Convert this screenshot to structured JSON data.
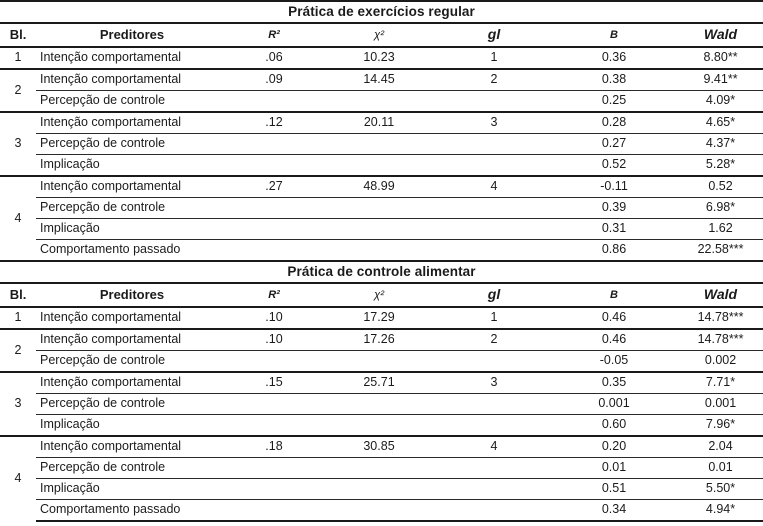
{
  "table": {
    "columns": [
      {
        "key": "bl",
        "label": "Bl."
      },
      {
        "key": "preditores",
        "label": "Preditores"
      },
      {
        "key": "r2",
        "label": "R²"
      },
      {
        "key": "chi2",
        "label": "χ²"
      },
      {
        "key": "gl",
        "label": "gl"
      },
      {
        "key": "b",
        "label": "B"
      },
      {
        "key": "wald",
        "label": "Wald"
      }
    ],
    "sections": [
      {
        "title": "Prática de exercícios regular",
        "blocks": [
          {
            "bl": "1",
            "rows": [
              [
                "Intenção comportamental",
                ".06",
                "10.23",
                "1",
                "0.36",
                "8.80**"
              ]
            ]
          },
          {
            "bl": "2",
            "rows": [
              [
                "Intenção comportamental",
                ".09",
                "14.45",
                "2",
                "0.38",
                "9.41**"
              ],
              [
                "Percepção de controle",
                "",
                "",
                "",
                "0.25",
                "4.09*"
              ]
            ]
          },
          {
            "bl": "3",
            "rows": [
              [
                "Intenção comportamental",
                ".12",
                "20.11",
                "3",
                "0.28",
                "4.65*"
              ],
              [
                "Percepção de controle",
                "",
                "",
                "",
                "0.27",
                "4.37*"
              ],
              [
                "Implicação",
                "",
                "",
                "",
                "0.52",
                "5.28*"
              ]
            ]
          },
          {
            "bl": "4",
            "rows": [
              [
                "Intenção comportamental",
                ".27",
                "48.99",
                "4",
                "-0.11",
                "0.52"
              ],
              [
                "Percepção de controle",
                "",
                "",
                "",
                "0.39",
                "6.98*"
              ],
              [
                "Implicação",
                "",
                "",
                "",
                "0.31",
                "1.62"
              ],
              [
                "Comportamento passado",
                "",
                "",
                "",
                "0.86",
                "22.58***"
              ]
            ]
          }
        ]
      },
      {
        "title": "Prática de controle alimentar",
        "blocks": [
          {
            "bl": "1",
            "rows": [
              [
                "Intenção comportamental",
                ".10",
                "17.29",
                "1",
                "0.46",
                "14.78***"
              ]
            ]
          },
          {
            "bl": "2",
            "rows": [
              [
                "Intenção comportamental",
                ".10",
                "17.26",
                "2",
                "0.46",
                "14.78***"
              ],
              [
                "Percepção de controle",
                "",
                "",
                "",
                "-0.05",
                "0.002"
              ]
            ]
          },
          {
            "bl": "3",
            "rows": [
              [
                "Intenção comportamental",
                ".15",
                "25.71",
                "3",
                "0.35",
                "7.71*"
              ],
              [
                "Percepção de controle",
                "",
                "",
                "",
                "0.001",
                "0.001"
              ],
              [
                "Implicação",
                "",
                "",
                "",
                "0.60",
                "7.96*"
              ]
            ]
          },
          {
            "bl": "4",
            "rows": [
              [
                "Intenção comportamental",
                ".18",
                "30.85",
                "4",
                "0.20",
                "2.04"
              ],
              [
                "Percepção de controle",
                "",
                "",
                "",
                "0.01",
                "0.01"
              ],
              [
                "Implicação",
                "",
                "",
                "",
                "0.51",
                "5.50*"
              ],
              [
                "Comportamento passado",
                "",
                "",
                "",
                "0.34",
                "4.94*"
              ]
            ]
          }
        ]
      }
    ]
  },
  "colors": {
    "text": "#1b1b1b",
    "rule": "#1a1a1a",
    "background": "#ffffff"
  }
}
